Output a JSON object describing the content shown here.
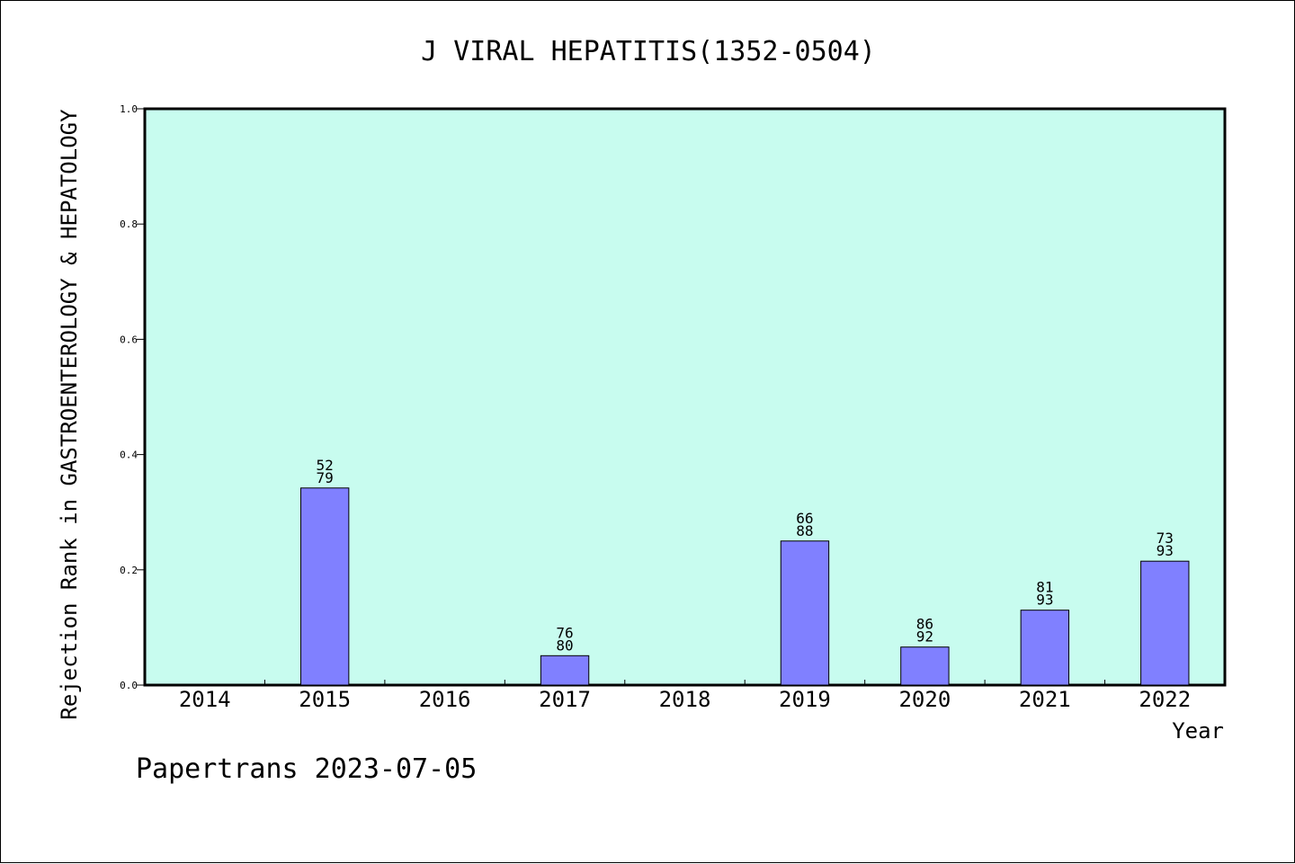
{
  "chart_data": {
    "type": "bar",
    "title": "J VIRAL HEPATITIS(1352-0504)",
    "xlabel": "Year",
    "ylabel": "Rejection Rank in GASTROENTEROLOGY & HEPATOLOGY",
    "categories": [
      "2014",
      "2015",
      "2016",
      "2017",
      "2018",
      "2019",
      "2020",
      "2021",
      "2022"
    ],
    "values": [
      null,
      0.342,
      null,
      0.051,
      null,
      0.25,
      0.066,
      0.13,
      0.215
    ],
    "bar_labels": [
      null,
      [
        "52",
        "79"
      ],
      null,
      [
        "76",
        "80"
      ],
      null,
      [
        "66",
        "88"
      ],
      [
        "86",
        "92"
      ],
      [
        "81",
        "93"
      ],
      [
        "73",
        "93"
      ]
    ],
    "ylim": [
      0,
      1.0
    ],
    "yticks": [
      "0.0",
      "0.2",
      "0.4",
      "0.6",
      "0.8",
      "1.0"
    ],
    "grid": false,
    "colors": {
      "plot_background": "#c8fcef",
      "bar_fill": "#8080ff",
      "bar_stroke": "#000000"
    }
  },
  "footer": {
    "credit": "Papertrans 2023-07-05"
  }
}
